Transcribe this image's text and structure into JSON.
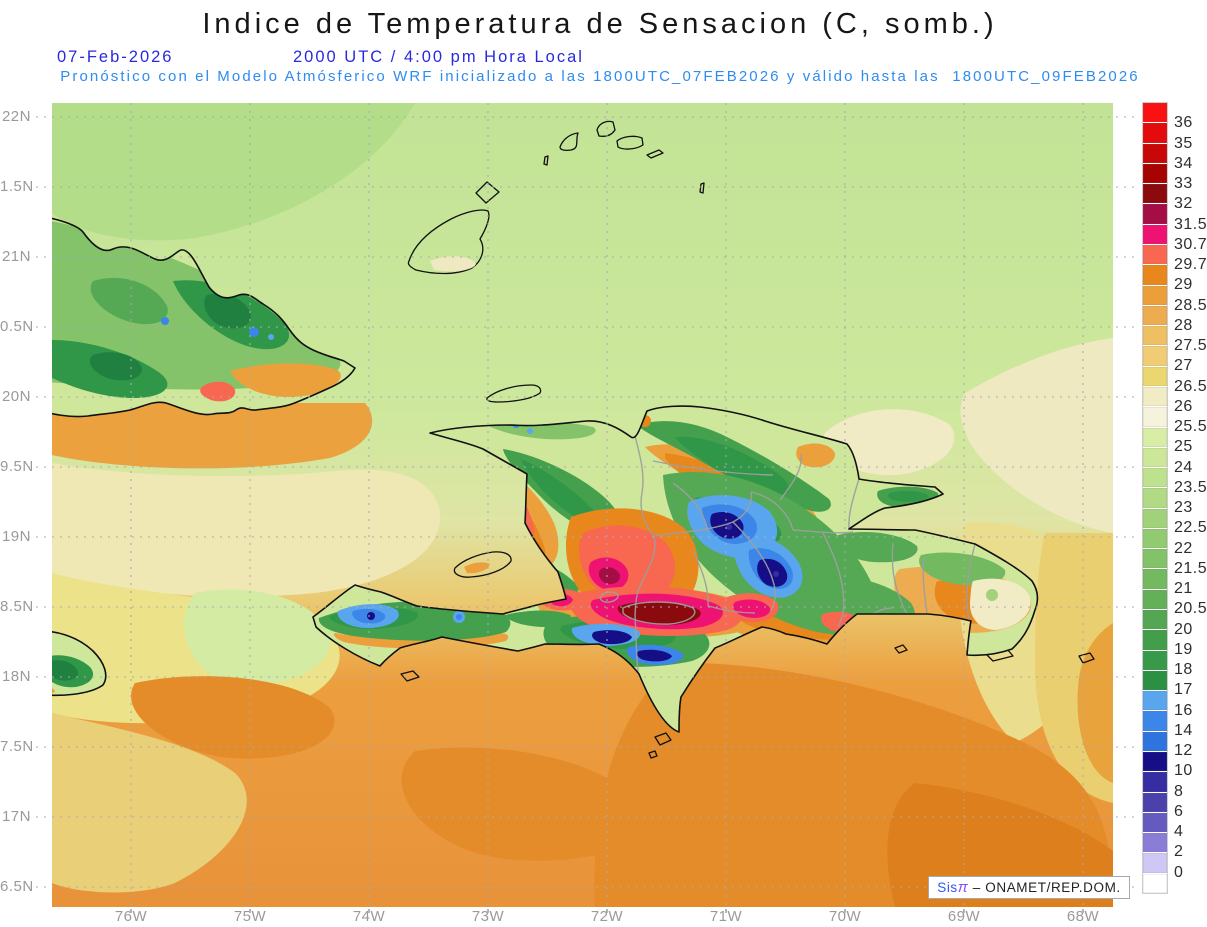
{
  "header": {
    "title": "Indice de Temperatura de Sensacion (C, somb.)",
    "date": "07-Feb-2026",
    "time": "2000 UTC / 4:00 pm Hora Local",
    "model_line": "Pronóstico con el Modelo Atmósferico WRF inicializado a las 1800UTC_07FEB2026 y válido hasta las  1800UTC_09FEB2026"
  },
  "colors": {
    "title_text": "#161616",
    "header_blue": "#2929e0",
    "model_blue": "#2e8cf0",
    "axis_gray": "#9a9a9a",
    "colorbar_label": "#2e2e2e",
    "coastline": "#111111",
    "province_gray": "#9e9e9e"
  },
  "axes": {
    "lat_labels": [
      "22N",
      "1.5N",
      "21N",
      "0.5N",
      "20N",
      "9.5N",
      "19N",
      "8.5N",
      "18N",
      "7.5N",
      "17N",
      "6.5N"
    ],
    "lon_labels": [
      "76W",
      "75W",
      "74W",
      "73W",
      "72W",
      "71W",
      "70W",
      "69W",
      "68W"
    ]
  },
  "colorbar": {
    "tick_labels": [
      "36",
      "35",
      "34",
      "33",
      "32",
      "31.5",
      "30.7",
      "29.7",
      "29",
      "28.5",
      "28",
      "27.5",
      "27",
      "26.5",
      "26",
      "25.5",
      "25",
      "24",
      "23.5",
      "23",
      "22.5",
      "22",
      "21.5",
      "21",
      "20.5",
      "20",
      "19",
      "18",
      "17",
      "16",
      "14",
      "12",
      "10",
      "8",
      "6",
      "4",
      "2",
      "0"
    ],
    "swatches": [
      "#fa1212",
      "#e30b0b",
      "#c80707",
      "#a80303",
      "#8a0a0e",
      "#a50d45",
      "#ee1272",
      "#f8674f",
      "#e8871b",
      "#eb9f3b",
      "#edac4f",
      "#efc062",
      "#f0cd74",
      "#ead76f",
      "#f1ecc6",
      "#f6f3dc",
      "#d8eea7",
      "#cce798",
      "#bee18d",
      "#b0da83",
      "#a1d279",
      "#92ca70",
      "#82c268",
      "#73b960",
      "#63b059",
      "#53a752",
      "#429e4b",
      "#379a49",
      "#2b9044",
      "#5aa6ee",
      "#3b86e8",
      "#2d74de",
      "#150e87",
      "#352da1",
      "#4a41ac",
      "#655ac0",
      "#8a7dd8",
      "#cfc7f4",
      "#ffffff"
    ]
  },
  "attribution": {
    "brand": "Sis",
    "pi": "π",
    "rest": " – ONAMET/REP.DOM."
  },
  "chart_data": {
    "type": "heatmap",
    "title": "Indice de Temperatura de Sensacion (C, somb.)",
    "units": "C",
    "region": "Hispaniola (Haiti and Dominican Republic), eastern Cuba, eastern Jamaica, Great Inagua, Turks and Caicos",
    "lon_range": [
      "76.7W",
      "67.8W"
    ],
    "lat_range": [
      "16.4N",
      "22.1N"
    ],
    "scale_levels": [
      36,
      35,
      34,
      33,
      32,
      31.5,
      30.7,
      29.7,
      29,
      28.5,
      28,
      27.5,
      27,
      26.5,
      26,
      25.5,
      25,
      24,
      23.5,
      23,
      22.5,
      22,
      21.5,
      21,
      20.5,
      20,
      19,
      18,
      17,
      16,
      14,
      12,
      10,
      8,
      6,
      4,
      2,
      0
    ],
    "legend_position": "right",
    "grid": "dotted gray graticule every 0.5 deg lat / 1 deg lon",
    "features": [
      {
        "area": "Enriquillo / Cul-de-Sac depression (Lake Enriquillo)",
        "value_range": "31.5-33"
      },
      {
        "area": "San Juan valley hot spot (crimson core)",
        "value_range": "30.7-32"
      },
      {
        "area": "Cordillera Central cold pools (navy cores)",
        "value_range": "8-16"
      },
      {
        "area": "Sierra de Bahoruco / Massif de la Selle cold streaks",
        "value_range": "10-17"
      },
      {
        "area": "Massif de la Hotte, Tiburon peninsula",
        "value_range": "14-17"
      },
      {
        "area": "Cibao valley and south coastal plains",
        "value_range": "28.5-29.7"
      },
      {
        "area": "Caribbean Sea south of Hispaniola",
        "value_range": "28-29.7"
      },
      {
        "area": "Atlantic waters north of the islands",
        "value_range": "23.5-25"
      },
      {
        "area": "Mona Passage / eastern waters",
        "value_range": "25.5-27"
      },
      {
        "area": "Sierra Maestra and Baracoa massif, Cuba",
        "value_range": "17-21"
      },
      {
        "area": "Blue Mountains, Jamaica",
        "value_range": "18-21"
      }
    ]
  }
}
